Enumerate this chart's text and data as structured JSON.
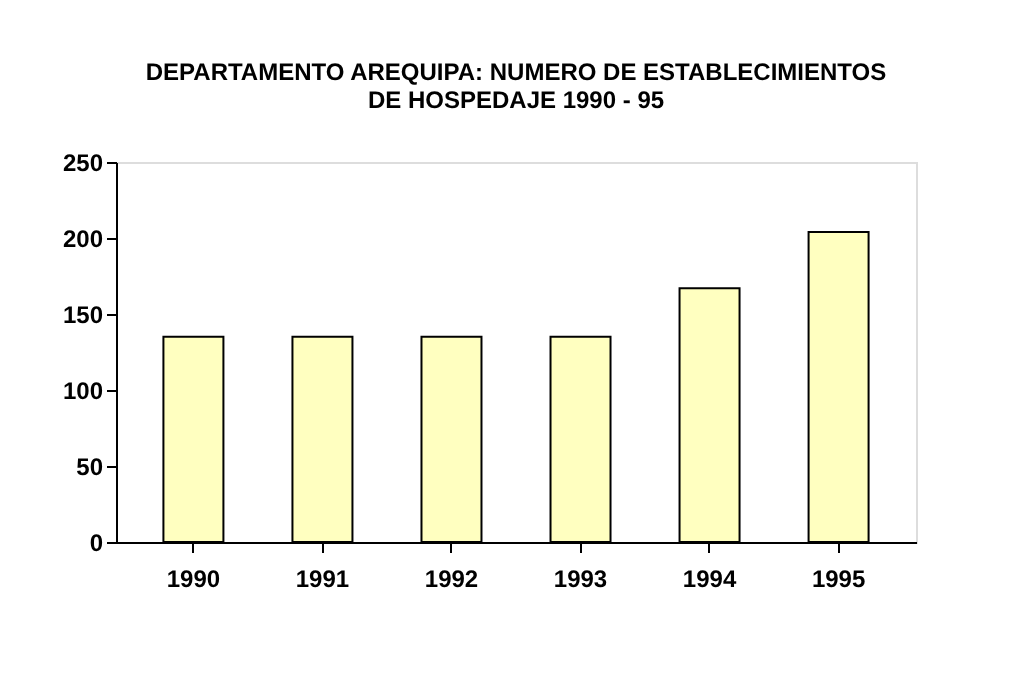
{
  "chart_data": {
    "type": "bar",
    "title": "DEPARTAMENTO AREQUIPA: NUMERO DE ESTABLECIMIENTOS\nDE HOSPEDAJE 1990 - 95",
    "categories": [
      "1990",
      "1991",
      "1992",
      "1993",
      "1994",
      "1995"
    ],
    "values": [
      135,
      135,
      135,
      135,
      167,
      204
    ],
    "color": "#ffffc0",
    "ylim": [
      0,
      250
    ],
    "yticks": [
      0,
      50,
      100,
      150,
      200,
      250
    ],
    "grid": false
  }
}
